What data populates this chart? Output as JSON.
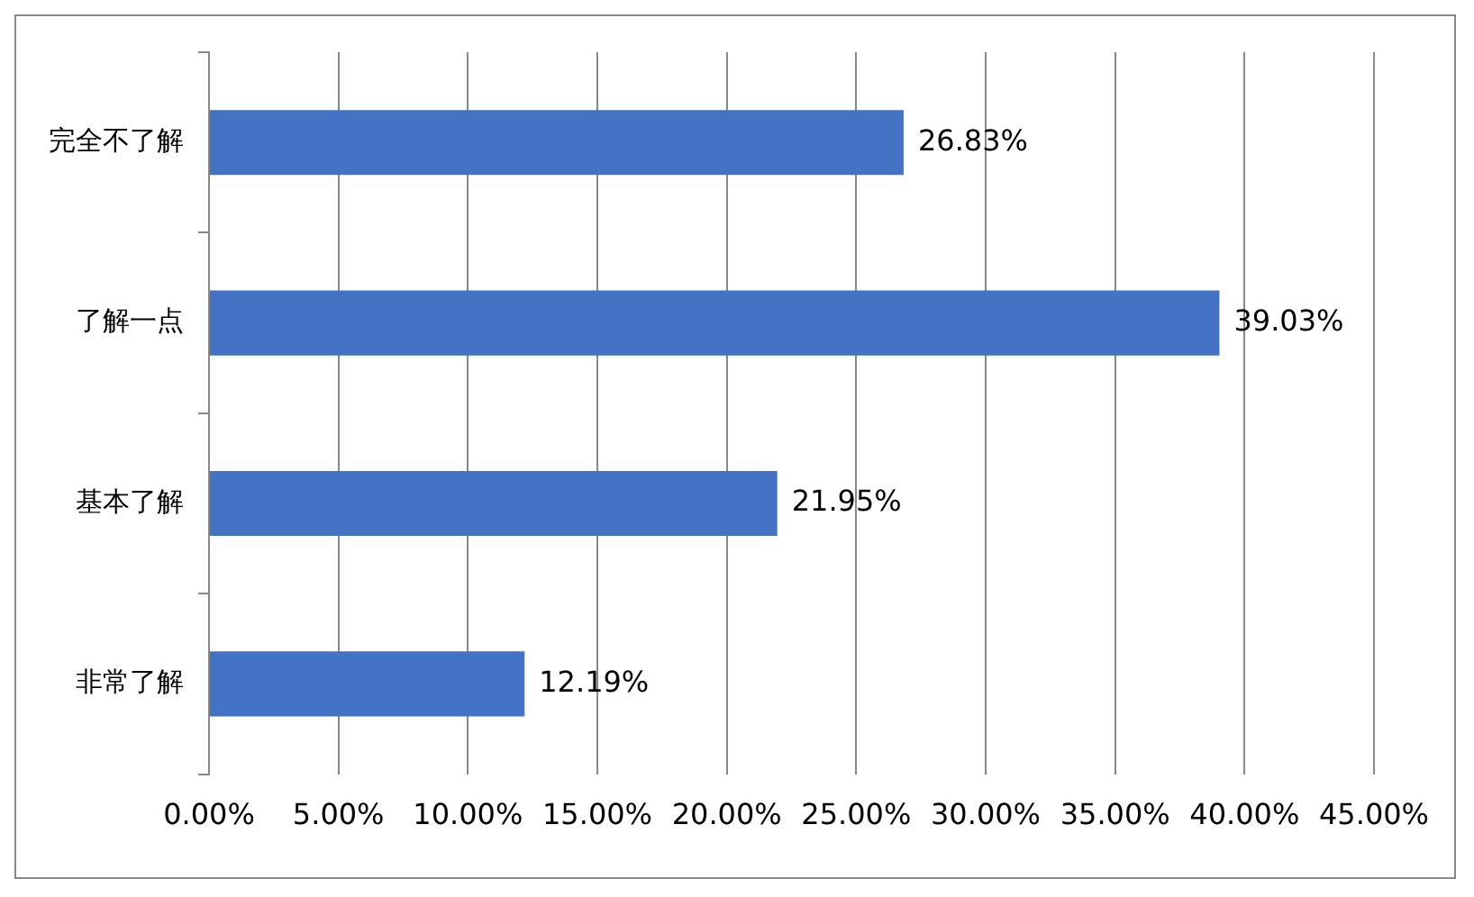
{
  "chart_data": {
    "type": "bar",
    "orientation": "horizontal",
    "categories": [
      "完全不了解",
      "了解一点",
      "基本了解",
      "非常了解"
    ],
    "values": [
      26.83,
      39.03,
      21.95,
      12.19
    ],
    "value_labels": [
      "26.83%",
      "39.03%",
      "21.95%",
      "12.19%"
    ],
    "color": "#4472c4",
    "xlim": [
      0,
      45
    ],
    "xticks": [
      {
        "value": 0,
        "label": "0.00%"
      },
      {
        "value": 5,
        "label": "5.00%"
      },
      {
        "value": 10,
        "label": "10.00%"
      },
      {
        "value": 15,
        "label": "15.00%"
      },
      {
        "value": 20,
        "label": "20.00%"
      },
      {
        "value": 25,
        "label": "25.00%"
      },
      {
        "value": 30,
        "label": "30.00%"
      },
      {
        "value": 35,
        "label": "35.00%"
      },
      {
        "value": 40,
        "label": "40.00%"
      },
      {
        "value": 45,
        "label": "45.00%"
      }
    ],
    "grid": "x"
  }
}
